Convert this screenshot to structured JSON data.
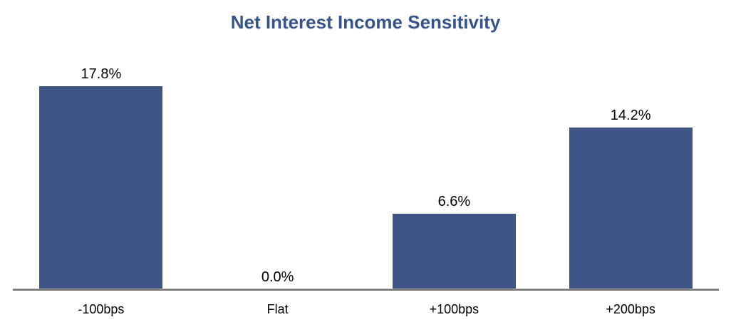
{
  "chart_data": {
    "type": "bar",
    "title": "Net Interest Income Sensitivity",
    "categories": [
      "-100bps",
      "Flat",
      "+100bps",
      "+200bps"
    ],
    "values": [
      17.8,
      0.0,
      6.6,
      14.2
    ],
    "value_labels": [
      "17.8%",
      "0.0%",
      "6.6%",
      "14.2%"
    ],
    "xlabel": "",
    "ylabel": "",
    "ylim": [
      0,
      20
    ],
    "grid": false,
    "legend_position": "none",
    "colors": {
      "bar": "#3F5585",
      "title": "#36538C",
      "value_label": "#000000",
      "category_label": "#000000",
      "axis_line": "#757575",
      "background": "#FFFFFF"
    }
  }
}
